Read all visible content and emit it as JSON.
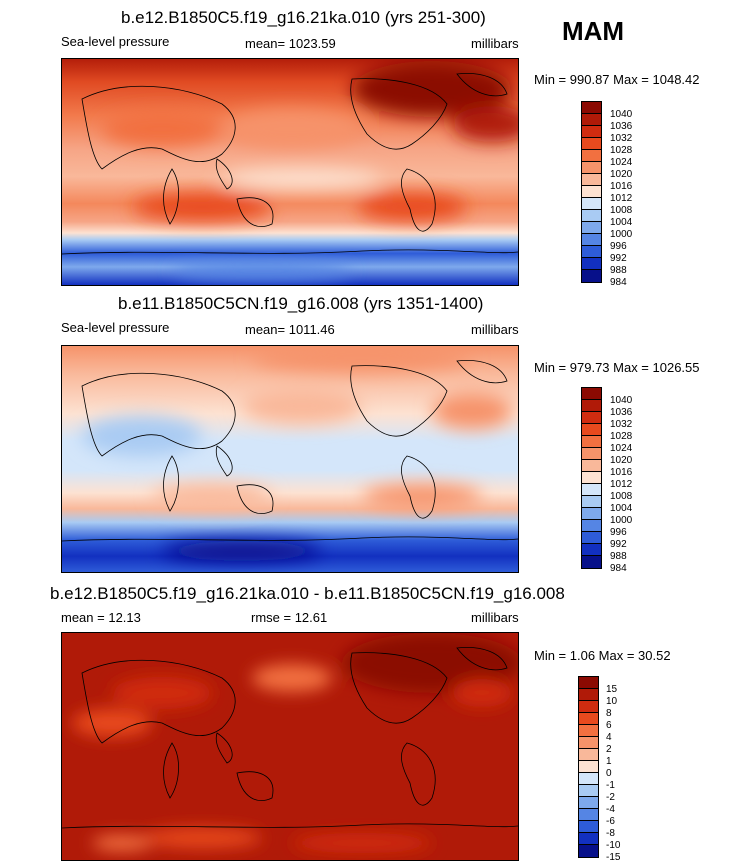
{
  "season": "MAM",
  "chart_data": [
    {
      "type": "heatmap",
      "title": "b.e12.B1850C5.f19_g16.21ka.010 (yrs 251-300)",
      "variable": "Sea-level pressure",
      "stat_label": "mean= 1023.59",
      "mean": 1023.59,
      "units": "millibars",
      "range_text": "Min = 990.87 Max = 1048.42",
      "min": 990.87,
      "max": 1048.42,
      "levels": [
        "1040",
        "1036",
        "1032",
        "1028",
        "1024",
        "1020",
        "1016",
        "1012",
        "1008",
        "1004",
        "1000",
        "996",
        "992",
        "988",
        "984"
      ],
      "colors": [
        "#8b0a02",
        "#b01a08",
        "#d02c10",
        "#e84a1e",
        "#f27040",
        "#f6936a",
        "#f9b89a",
        "#fde2d2",
        "#d4e6fa",
        "#a9cbf3",
        "#7ea9ec",
        "#5585e4",
        "#2e5cd8",
        "#1230c0",
        "#07108a"
      ]
    },
    {
      "type": "heatmap",
      "title": "b.e11.B1850C5CN.f19_g16.008 (yrs 1351-1400)",
      "variable": "Sea-level pressure",
      "stat_label": "mean= 1011.46",
      "mean": 1011.46,
      "units": "millibars",
      "range_text": "Min = 979.73 Max = 1026.55",
      "min": 979.73,
      "max": 1026.55,
      "levels": [
        "1040",
        "1036",
        "1032",
        "1028",
        "1024",
        "1020",
        "1016",
        "1012",
        "1008",
        "1004",
        "1000",
        "996",
        "992",
        "988",
        "984"
      ],
      "colors": [
        "#8b0a02",
        "#b01a08",
        "#d02c10",
        "#e84a1e",
        "#f27040",
        "#f6936a",
        "#f9b89a",
        "#fde2d2",
        "#d4e6fa",
        "#a9cbf3",
        "#7ea9ec",
        "#5585e4",
        "#2e5cd8",
        "#1230c0",
        "#07108a"
      ]
    },
    {
      "type": "heatmap",
      "title": "b.e12.B1850C5.f19_g16.21ka.010 - b.e11.B1850C5CN.f19_g16.008",
      "stat_label": "mean = 12.13",
      "mean": 12.13,
      "rmse_label": "rmse = 12.61",
      "rmse": 12.61,
      "units": "millibars",
      "range_text": "Min = 1.06 Max = 30.52",
      "min": 1.06,
      "max": 30.52,
      "levels": [
        "15",
        "10",
        "8",
        "6",
        "4",
        "2",
        "1",
        "0",
        "-1",
        "-2",
        "-4",
        "-6",
        "-8",
        "-10",
        "-15"
      ],
      "colors": [
        "#8b0a02",
        "#b01a08",
        "#d02c10",
        "#e84a1e",
        "#f27040",
        "#f6936a",
        "#f9b89a",
        "#fde2d2",
        "#d4e6fa",
        "#a9cbf3",
        "#7ea9ec",
        "#5585e4",
        "#2e5cd8",
        "#1230c0",
        "#07108a"
      ]
    }
  ]
}
